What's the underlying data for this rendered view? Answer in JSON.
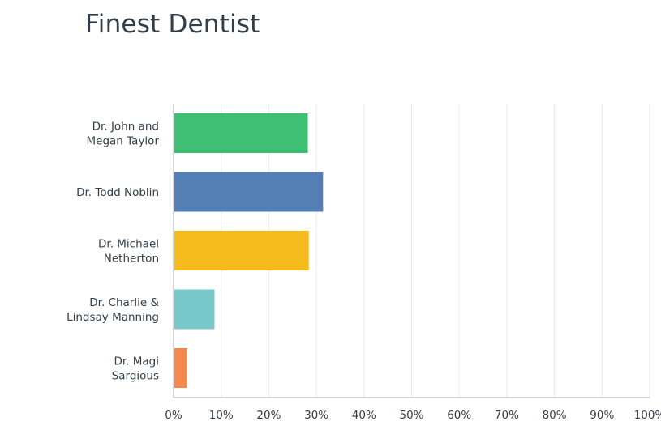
{
  "chart_data": {
    "type": "bar",
    "orientation": "horizontal",
    "title": "Finest Dentist",
    "categories": [
      [
        "Dr. John and",
        "Megan Taylor"
      ],
      [
        "Dr. Todd Noblin"
      ],
      [
        "Dr. Michael",
        "Netherton"
      ],
      [
        "Dr. Charlie &",
        "Lindsay Manning"
      ],
      [
        "Dr. Magi",
        "Sargious"
      ]
    ],
    "values": [
      28.2,
      31.4,
      28.4,
      8.6,
      2.8
    ],
    "colors": [
      "#3fbf74",
      "#537fb5",
      "#f5bb1d",
      "#78c8ca",
      "#f4884f"
    ],
    "xlim": [
      0,
      100
    ],
    "xticks": [
      0,
      10,
      20,
      30,
      40,
      50,
      60,
      70,
      80,
      90,
      100
    ],
    "xtick_labels": [
      "0%",
      "10%",
      "20%",
      "30%",
      "40%",
      "50%",
      "60%",
      "70%",
      "80%",
      "90%",
      "100%"
    ],
    "grid": "vertical",
    "legend": "none"
  }
}
